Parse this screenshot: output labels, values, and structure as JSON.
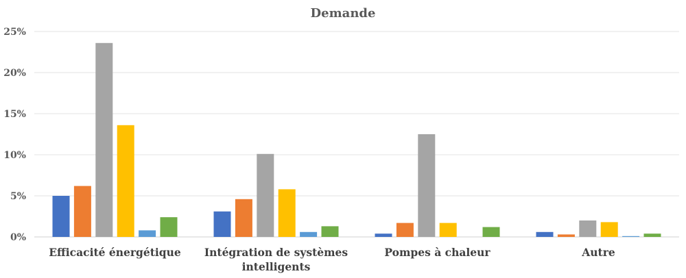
{
  "chart_data": {
    "type": "bar",
    "title": "Demande",
    "xlabel": "",
    "ylabel": "",
    "ylim": [
      0,
      0.25
    ],
    "yticks": [
      0,
      0.05,
      0.1,
      0.15,
      0.2,
      0.25
    ],
    "ytick_labels": [
      "0%",
      "5%",
      "10%",
      "15%",
      "20%",
      "25%"
    ],
    "grid": true,
    "legend": "none",
    "categories": [
      [
        "Efficacité énergétique"
      ],
      [
        "Intégration de systèmes",
        "intelligents"
      ],
      [
        "Pompes à chaleur"
      ],
      [
        "Autre"
      ]
    ],
    "series": [
      {
        "color": "#4472C4",
        "values": [
          0.05,
          0.031,
          0.004,
          0.006
        ]
      },
      {
        "color": "#ED7D31",
        "values": [
          0.062,
          0.046,
          0.017,
          0.003
        ]
      },
      {
        "color": "#A5A5A5",
        "values": [
          0.236,
          0.101,
          0.125,
          0.02
        ]
      },
      {
        "color": "#FFC000",
        "values": [
          0.136,
          0.058,
          0.017,
          0.018
        ]
      },
      {
        "color": "#5B9BD5",
        "values": [
          0.008,
          0.006,
          0.0,
          0.001
        ]
      },
      {
        "color": "#70AD47",
        "values": [
          0.024,
          0.013,
          0.012,
          0.004
        ]
      }
    ]
  }
}
